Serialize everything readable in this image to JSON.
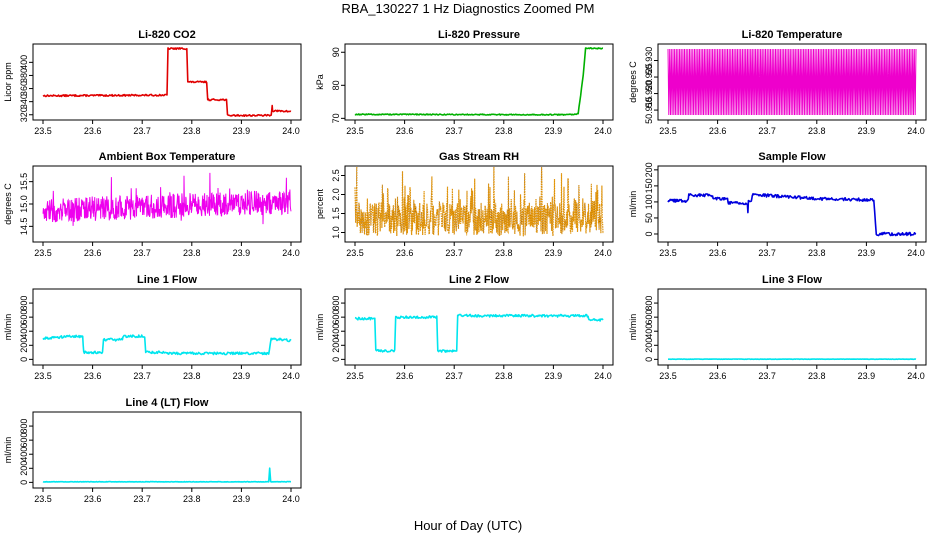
{
  "figure": {
    "title": "RBA_130227  1 Hz Diagnostics Zoomed PM",
    "xlabel": "Hour of Day (UTC)"
  },
  "chart_data": [
    {
      "type": "line",
      "title": "Li-820 CO2",
      "ylabel": "Licor ppm",
      "color": "#e00000",
      "xlim": [
        23.5,
        24.0
      ],
      "ylim": [
        312,
        428
      ],
      "xticks": [
        "23.5",
        "23.6",
        "23.7",
        "23.8",
        "23.9",
        "24.0"
      ],
      "yticks": [
        {
          "v": 320,
          "t": "320"
        },
        {
          "v": 340,
          "t": "340"
        },
        {
          "v": 360,
          "t": "360"
        },
        {
          "v": 380,
          "t": "380"
        },
        {
          "v": 400,
          "t": "400"
        }
      ],
      "noise": 1.2,
      "series": [
        [
          23.5,
          349
        ],
        [
          23.75,
          350
        ],
        [
          23.752,
          421
        ],
        [
          23.79,
          421
        ],
        [
          23.792,
          370
        ],
        [
          23.83,
          370
        ],
        [
          23.832,
          343
        ],
        [
          23.87,
          343
        ],
        [
          23.872,
          319
        ],
        [
          23.96,
          319
        ],
        [
          23.962,
          335
        ],
        [
          23.963,
          326
        ],
        [
          24.0,
          325
        ]
      ]
    },
    {
      "type": "line",
      "title": "Li-820 Pressure",
      "ylabel": "kPa",
      "color": "#00b000",
      "xlim": [
        23.5,
        24.0
      ],
      "ylim": [
        69.5,
        92.5
      ],
      "xticks": [
        "23.5",
        "23.6",
        "23.7",
        "23.8",
        "23.9",
        "24.0"
      ],
      "yticks": [
        {
          "v": 70,
          "t": "70"
        },
        {
          "v": 80,
          "t": "80"
        },
        {
          "v": 90,
          "t": "90"
        }
      ],
      "noise": 0.15,
      "series": [
        [
          23.5,
          71.2
        ],
        [
          23.94,
          71.1
        ],
        [
          23.95,
          71.5
        ],
        [
          23.955,
          77
        ],
        [
          23.96,
          83
        ],
        [
          23.965,
          91.2
        ],
        [
          24.0,
          91.2
        ]
      ]
    },
    {
      "type": "oscillating",
      "title": "Li-820 Temperature",
      "ylabel": "degrees C",
      "color": "#ee00cc",
      "xlim": [
        23.5,
        24.0
      ],
      "ylim": [
        50.912,
        50.935
      ],
      "xticks": [
        "23.5",
        "23.6",
        "23.7",
        "23.8",
        "23.9",
        "24.0"
      ],
      "yticks": [
        {
          "v": 50.915,
          "t": "50.915"
        },
        {
          "v": 50.92,
          "t": "50.920"
        },
        {
          "v": 50.925,
          "t": "50.925"
        },
        {
          "v": 50.93,
          "t": "50.930"
        }
      ],
      "low": 50.9135,
      "high": 50.9335,
      "count": 300
    },
    {
      "type": "noisy",
      "title": "Ambient Box Temperature",
      "ylabel": "degrees C",
      "color": "#ee00ee",
      "xlim": [
        23.5,
        24.0
      ],
      "ylim": [
        14.15,
        15.85
      ],
      "xticks": [
        "23.5",
        "23.6",
        "23.7",
        "23.8",
        "23.9",
        "24.0"
      ],
      "yticks": [
        {
          "v": 14.5,
          "t": "14.5"
        },
        {
          "v": 15.0,
          "t": "15.0"
        },
        {
          "v": 15.5,
          "t": "15.5"
        }
      ],
      "base_start": 14.85,
      "base_end": 15.05,
      "amp": 0.55,
      "count": 700
    },
    {
      "type": "scatter-noisy",
      "title": "Gas Stream RH",
      "ylabel": "percent",
      "color": "#e69500",
      "edge": "#7a4000",
      "xlim": [
        23.5,
        24.0
      ],
      "ylim": [
        0.75,
        2.75
      ],
      "xticks": [
        "23.5",
        "23.6",
        "23.7",
        "23.8",
        "23.9",
        "24.0"
      ],
      "yticks": [
        {
          "v": 1.0,
          "t": "1.0"
        },
        {
          "v": 1.5,
          "t": "1.5"
        },
        {
          "v": 2.0,
          "t": "2.0"
        },
        {
          "v": 2.5,
          "t": "2.5"
        }
      ],
      "base_start": 1.35,
      "base_end": 1.35,
      "amp": 0.9,
      "count": 700
    },
    {
      "type": "line",
      "title": "Sample Flow",
      "ylabel": "ml/min",
      "color": "#0000dd",
      "xlim": [
        23.5,
        24.0
      ],
      "ylim": [
        -25,
        212
      ],
      "xticks": [
        "23.5",
        "23.6",
        "23.7",
        "23.8",
        "23.9",
        "24.0"
      ],
      "yticks": [
        {
          "v": 0,
          "t": "0"
        },
        {
          "v": 50,
          "t": "50"
        },
        {
          "v": 100,
          "t": "100"
        },
        {
          "v": 150,
          "t": "150"
        },
        {
          "v": 200,
          "t": "200"
        }
      ],
      "noise": 5,
      "series": [
        [
          23.5,
          103
        ],
        [
          23.54,
          104
        ],
        [
          23.542,
          122
        ],
        [
          23.59,
          120
        ],
        [
          23.592,
          112
        ],
        [
          23.62,
          110
        ],
        [
          23.622,
          98
        ],
        [
          23.66,
          96
        ],
        [
          23.661,
          65
        ],
        [
          23.662,
          100
        ],
        [
          23.668,
          100
        ],
        [
          23.67,
          122
        ],
        [
          23.7,
          120
        ],
        [
          23.8,
          110
        ],
        [
          23.91,
          107
        ],
        [
          23.915,
          100
        ],
        [
          23.92,
          0
        ],
        [
          24.0,
          0
        ]
      ]
    },
    {
      "type": "line",
      "title": "Line 1 Flow",
      "ylabel": "ml/min",
      "color": "#00e5ee",
      "xlim": [
        23.5,
        24.0
      ],
      "ylim": [
        -80,
        1000
      ],
      "xticks": [
        "23.5",
        "23.6",
        "23.7",
        "23.8",
        "23.9",
        "24.0"
      ],
      "yticks": [
        {
          "v": 0,
          "t": "0"
        },
        {
          "v": 200,
          "t": "200"
        },
        {
          "v": 400,
          "t": "400"
        },
        {
          "v": 600,
          "t": "600"
        },
        {
          "v": 800,
          "t": "800"
        }
      ],
      "noise": 18,
      "series": [
        [
          23.5,
          300
        ],
        [
          23.54,
          320
        ],
        [
          23.58,
          330
        ],
        [
          23.582,
          100
        ],
        [
          23.62,
          100
        ],
        [
          23.622,
          280
        ],
        [
          23.66,
          280
        ],
        [
          23.662,
          330
        ],
        [
          23.705,
          330
        ],
        [
          23.707,
          100
        ],
        [
          23.75,
          100
        ],
        [
          23.752,
          85
        ],
        [
          23.955,
          85
        ],
        [
          23.96,
          290
        ],
        [
          24.0,
          270
        ]
      ]
    },
    {
      "type": "line",
      "title": "Line 2 Flow",
      "ylabel": "ml/min",
      "color": "#00e5ee",
      "xlim": [
        23.5,
        24.0
      ],
      "ylim": [
        -80,
        1000
      ],
      "xticks": [
        "23.5",
        "23.6",
        "23.7",
        "23.8",
        "23.9",
        "24.0"
      ],
      "yticks": [
        {
          "v": 0,
          "t": "0"
        },
        {
          "v": 200,
          "t": "200"
        },
        {
          "v": 400,
          "t": "400"
        },
        {
          "v": 600,
          "t": "600"
        },
        {
          "v": 800,
          "t": "800"
        }
      ],
      "noise": 18,
      "series": [
        [
          23.5,
          580
        ],
        [
          23.54,
          580
        ],
        [
          23.542,
          120
        ],
        [
          23.58,
          120
        ],
        [
          23.582,
          600
        ],
        [
          23.665,
          600
        ],
        [
          23.667,
          120
        ],
        [
          23.705,
          120
        ],
        [
          23.707,
          620
        ],
        [
          23.97,
          620
        ],
        [
          23.972,
          560
        ],
        [
          24.0,
          560
        ]
      ]
    },
    {
      "type": "line",
      "title": "Line 3 Flow",
      "ylabel": "ml/min",
      "color": "#00e5ee",
      "xlim": [
        23.5,
        24.0
      ],
      "ylim": [
        -80,
        1000
      ],
      "xticks": [
        "23.5",
        "23.6",
        "23.7",
        "23.8",
        "23.9",
        "24.0"
      ],
      "yticks": [
        {
          "v": 0,
          "t": "0"
        },
        {
          "v": 200,
          "t": "200"
        },
        {
          "v": 400,
          "t": "400"
        },
        {
          "v": 600,
          "t": "600"
        },
        {
          "v": 800,
          "t": "800"
        }
      ],
      "noise": 2,
      "series": [
        [
          23.5,
          3
        ],
        [
          24.0,
          3
        ]
      ]
    },
    {
      "type": "line",
      "title": "Line 4 (LT) Flow",
      "ylabel": "ml/min",
      "color": "#00e5ee",
      "xlim": [
        23.5,
        24.0
      ],
      "ylim": [
        -80,
        1000
      ],
      "xticks": [
        "23.5",
        "23.6",
        "23.7",
        "23.8",
        "23.9",
        "24.0"
      ],
      "yticks": [
        {
          "v": 0,
          "t": "0"
        },
        {
          "v": 200,
          "t": "200"
        },
        {
          "v": 400,
          "t": "400"
        },
        {
          "v": 600,
          "t": "600"
        },
        {
          "v": 800,
          "t": "800"
        }
      ],
      "noise": 3,
      "series": [
        [
          23.5,
          8
        ],
        [
          23.955,
          8
        ],
        [
          23.957,
          200
        ],
        [
          23.959,
          8
        ],
        [
          24.0,
          10
        ]
      ]
    }
  ]
}
